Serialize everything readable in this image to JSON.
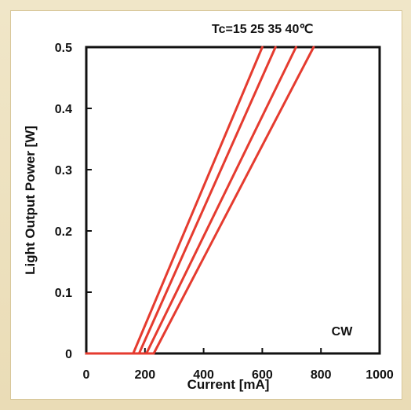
{
  "chart_data": {
    "type": "line",
    "title": "",
    "xlabel": "Current [mA]",
    "ylabel": "Light Output Power [W]",
    "xlim": [
      0,
      1000
    ],
    "ylim": [
      0,
      0.5
    ],
    "x_ticks": [
      0,
      200,
      400,
      600,
      800,
      1000
    ],
    "y_ticks": [
      0,
      0.1,
      0.2,
      0.3,
      0.4,
      0.5
    ],
    "x_tick_labels": [
      "0",
      "200",
      "400",
      "600",
      "800",
      "1000"
    ],
    "y_tick_labels": [
      "0",
      "0.1",
      "0.2",
      "0.3",
      "0.4",
      "0.5"
    ],
    "legend_text": "Tc=15 25 35 40℃",
    "annotation": "CW",
    "grid": false,
    "series": [
      {
        "name": "15",
        "points": [
          [
            0,
            0
          ],
          [
            160,
            0
          ],
          [
            600,
            0.5
          ]
        ],
        "color": "#e53b2f"
      },
      {
        "name": "25",
        "points": [
          [
            0,
            0
          ],
          [
            180,
            0
          ],
          [
            645,
            0.5
          ]
        ],
        "color": "#e53b2f"
      },
      {
        "name": "35",
        "points": [
          [
            0,
            0
          ],
          [
            205,
            0
          ],
          [
            715,
            0.5
          ]
        ],
        "color": "#e53b2f"
      },
      {
        "name": "40",
        "points": [
          [
            0,
            0
          ],
          [
            230,
            0
          ],
          [
            775,
            0.5
          ]
        ],
        "color": "#e53b2f"
      }
    ]
  }
}
